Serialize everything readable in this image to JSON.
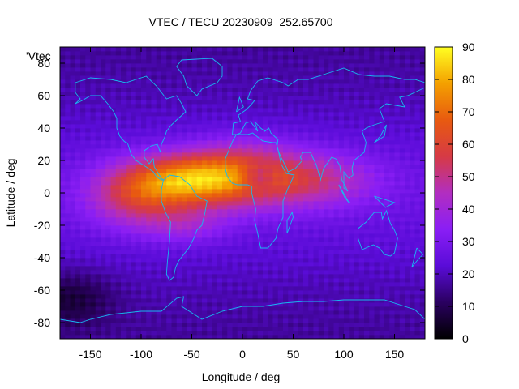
{
  "chart_data": {
    "type": "heatmap",
    "title": "VTEC / TECU 20230909_252.65700",
    "xlabel": "Longitude / deg",
    "ylabel": "Latitude / deg",
    "series_label": "'Vtec_",
    "xlim": [
      -180,
      180
    ],
    "ylim": [
      -90,
      90
    ],
    "x_ticks": [
      -150,
      -100,
      -50,
      0,
      50,
      100,
      150
    ],
    "y_ticks": [
      -80,
      -60,
      -40,
      -20,
      0,
      20,
      40,
      60,
      80
    ],
    "colorbar": {
      "range": [
        0,
        90
      ],
      "ticks": [
        0,
        10,
        20,
        30,
        40,
        50,
        60,
        70,
        80,
        90
      ],
      "palette": [
        "#000000",
        "#2a0060",
        "#5a0cd8",
        "#8a1ef5",
        "#b22ec0",
        "#d63a45",
        "#e85a10",
        "#f4a000",
        "#ffff22"
      ]
    },
    "grid": {
      "lon_step": 5,
      "lat_step": 2.5
    },
    "blobs": [
      {
        "lon": -55,
        "lat": 8,
        "slon": 40,
        "slat": 11,
        "amp": 42
      },
      {
        "lon": -105,
        "lat": -2,
        "slon": 35,
        "slat": 14,
        "amp": 26
      },
      {
        "lon": 0,
        "lat": 12,
        "slon": 40,
        "slat": 14,
        "amp": 30
      },
      {
        "lon": 70,
        "lat": 8,
        "slon": 45,
        "slat": 12,
        "amp": 22
      },
      {
        "lon": 15,
        "lat": 10,
        "slon": 12,
        "slat": 6,
        "amp": -18
      },
      {
        "lon": -55,
        "lat": -20,
        "slon": 30,
        "slat": 8,
        "amp": 12
      }
    ],
    "baseline": {
      "equator": 26,
      "pole": 16,
      "southwest_dark": -12
    },
    "coastline_color": "#18b8f0",
    "coastlines": [
      [
        [
          -165,
          68
        ],
        [
          -150,
          71
        ],
        [
          -130,
          70
        ],
        [
          -115,
          68
        ],
        [
          -95,
          72
        ],
        [
          -85,
          66
        ],
        [
          -80,
          62
        ],
        [
          -75,
          58
        ],
        [
          -65,
          60
        ],
        [
          -60,
          55
        ],
        [
          -56,
          50
        ],
        [
          -65,
          45
        ],
        [
          -70,
          42
        ],
        [
          -75,
          38
        ],
        [
          -77,
          34
        ],
        [
          -80,
          30
        ],
        [
          -81,
          25
        ],
        [
          -84,
          30
        ],
        [
          -90,
          29
        ],
        [
          -97,
          26
        ],
        [
          -97,
          22
        ],
        [
          -92,
          18
        ],
        [
          -88,
          21
        ],
        [
          -87,
          16
        ],
        [
          -83,
          12
        ],
        [
          -80,
          9
        ],
        [
          -78,
          8
        ],
        [
          -80,
          8
        ],
        [
          -85,
          10
        ],
        [
          -88,
          13
        ],
        [
          -95,
          16
        ],
        [
          -105,
          20
        ],
        [
          -110,
          24
        ],
        [
          -113,
          30
        ],
        [
          -117,
          32
        ],
        [
          -121,
          35
        ],
        [
          -124,
          40
        ],
        [
          -124,
          46
        ],
        [
          -127,
          50
        ],
        [
          -133,
          55
        ],
        [
          -140,
          60
        ],
        [
          -150,
          60
        ],
        [
          -158,
          57
        ],
        [
          -165,
          55
        ],
        [
          -160,
          58
        ],
        [
          -165,
          62
        ],
        [
          -165,
          68
        ]
      ],
      [
        [
          -78,
          8
        ],
        [
          -72,
          11
        ],
        [
          -62,
          10
        ],
        [
          -52,
          5
        ],
        [
          -45,
          -2
        ],
        [
          -35,
          -5
        ],
        [
          -37,
          -12
        ],
        [
          -40,
          -20
        ],
        [
          -45,
          -23
        ],
        [
          -48,
          -28
        ],
        [
          -53,
          -34
        ],
        [
          -58,
          -38
        ],
        [
          -63,
          -42
        ],
        [
          -66,
          -46
        ],
        [
          -68,
          -52
        ],
        [
          -72,
          -54
        ],
        [
          -75,
          -50
        ],
        [
          -74,
          -42
        ],
        [
          -72,
          -30
        ],
        [
          -71,
          -18
        ],
        [
          -76,
          -12
        ],
        [
          -80,
          -5
        ],
        [
          -80,
          2
        ],
        [
          -78,
          8
        ]
      ],
      [
        [
          -45,
          60
        ],
        [
          -55,
          66
        ],
        [
          -58,
          72
        ],
        [
          -65,
          78
        ],
        [
          -60,
          82
        ],
        [
          -30,
          83
        ],
        [
          -20,
          78
        ],
        [
          -20,
          72
        ],
        [
          -25,
          68
        ],
        [
          -40,
          64
        ],
        [
          -45,
          60
        ]
      ],
      [
        [
          -17,
          15
        ],
        [
          -17,
          21
        ],
        [
          -13,
          27
        ],
        [
          -9,
          33
        ],
        [
          -6,
          36
        ],
        [
          5,
          36
        ],
        [
          10,
          37
        ],
        [
          20,
          32
        ],
        [
          30,
          31
        ],
        [
          33,
          31
        ],
        [
          35,
          27
        ],
        [
          38,
          18
        ],
        [
          43,
          12
        ],
        [
          51,
          11
        ],
        [
          45,
          3
        ],
        [
          40,
          -5
        ],
        [
          40,
          -15
        ],
        [
          35,
          -22
        ],
        [
          33,
          -28
        ],
        [
          25,
          -34
        ],
        [
          18,
          -34
        ],
        [
          15,
          -25
        ],
        [
          12,
          -17
        ],
        [
          13,
          -10
        ],
        [
          9,
          0
        ],
        [
          9,
          4
        ],
        [
          5,
          5
        ],
        [
          -5,
          5
        ],
        [
          -10,
          6
        ],
        [
          -15,
          10
        ],
        [
          -17,
          15
        ]
      ],
      [
        [
          -10,
          36
        ],
        [
          -9,
          43
        ],
        [
          -2,
          44
        ],
        [
          -4,
          48
        ],
        [
          3,
          51
        ],
        [
          8,
          54
        ],
        [
          12,
          57
        ],
        [
          5,
          58
        ],
        [
          8,
          63
        ],
        [
          15,
          69
        ],
        [
          25,
          71
        ],
        [
          40,
          68
        ],
        [
          45,
          66
        ],
        [
          55,
          70
        ],
        [
          65,
          70
        ],
        [
          80,
          73
        ],
        [
          100,
          77
        ],
        [
          115,
          73
        ],
        [
          130,
          72
        ],
        [
          145,
          72
        ],
        [
          160,
          70
        ],
        [
          170,
          70
        ],
        [
          180,
          68
        ],
        [
          180,
          65
        ],
        [
          170,
          62
        ],
        [
          163,
          60
        ],
        [
          155,
          59
        ],
        [
          160,
          53
        ],
        [
          142,
          55
        ],
        [
          135,
          52
        ],
        [
          140,
          44
        ],
        [
          130,
          42
        ],
        [
          122,
          40
        ],
        [
          118,
          38
        ],
        [
          122,
          31
        ],
        [
          120,
          25
        ],
        [
          110,
          20
        ],
        [
          108,
          15
        ],
        [
          109,
          11
        ],
        [
          105,
          9
        ],
        [
          100,
          13
        ],
        [
          100,
          3
        ],
        [
          104,
          1
        ],
        [
          98,
          8
        ],
        [
          96,
          17
        ],
        [
          92,
          21
        ],
        [
          88,
          22
        ],
        [
          80,
          15
        ],
        [
          77,
          8
        ],
        [
          73,
          17
        ],
        [
          70,
          21
        ],
        [
          67,
          25
        ],
        [
          60,
          25
        ],
        [
          57,
          22
        ],
        [
          59,
          20
        ],
        [
          52,
          15
        ],
        [
          45,
          13
        ],
        [
          43,
          16
        ],
        [
          38,
          22
        ],
        [
          34,
          28
        ],
        [
          35,
          33
        ],
        [
          28,
          37
        ],
        [
          26,
          40
        ],
        [
          22,
          38
        ],
        [
          18,
          40
        ],
        [
          12,
          44
        ],
        [
          15,
          38
        ],
        [
          8,
          44
        ],
        [
          3,
          43
        ],
        [
          -2,
          37
        ],
        [
          -6,
          36
        ],
        [
          -10,
          36
        ]
      ],
      [
        [
          -6,
          50
        ],
        [
          -3,
          59
        ],
        [
          1,
          53
        ],
        [
          -6,
          50
        ]
      ],
      [
        [
          114,
          -22
        ],
        [
          122,
          -18
        ],
        [
          130,
          -12
        ],
        [
          137,
          -12
        ],
        [
          138,
          -16
        ],
        [
          142,
          -11
        ],
        [
          146,
          -19
        ],
        [
          150,
          -23
        ],
        [
          153,
          -28
        ],
        [
          150,
          -37
        ],
        [
          146,
          -39
        ],
        [
          140,
          -38
        ],
        [
          135,
          -34
        ],
        [
          129,
          -32
        ],
        [
          118,
          -35
        ],
        [
          114,
          -28
        ],
        [
          114,
          -22
        ]
      ],
      [
        [
          44,
          -25
        ],
        [
          50,
          -15
        ],
        [
          49,
          -12
        ],
        [
          44,
          -17
        ],
        [
          44,
          -25
        ]
      ],
      [
        [
          95,
          5
        ],
        [
          105,
          -6
        ],
        [
          101,
          -3
        ],
        [
          95,
          5
        ]
      ],
      [
        [
          130,
          -2
        ],
        [
          150,
          -6
        ],
        [
          141,
          -9
        ],
        [
          130,
          -2
        ]
      ],
      [
        [
          130,
          31
        ],
        [
          140,
          35
        ],
        [
          142,
          42
        ],
        [
          136,
          35
        ],
        [
          130,
          31
        ]
      ],
      [
        [
          172,
          -34
        ],
        [
          178,
          -38
        ],
        [
          172,
          -42
        ],
        [
          167,
          -46
        ],
        [
          172,
          -34
        ]
      ],
      [
        [
          -180,
          -78
        ],
        [
          -160,
          -80
        ],
        [
          -150,
          -78
        ],
        [
          -130,
          -75
        ],
        [
          -100,
          -73
        ],
        [
          -80,
          -73
        ],
        [
          -65,
          -65
        ],
        [
          -58,
          -64
        ],
        [
          -60,
          -70
        ],
        [
          -40,
          -78
        ],
        [
          -20,
          -73
        ],
        [
          0,
          -70
        ],
        [
          20,
          -70
        ],
        [
          40,
          -68
        ],
        [
          60,
          -67
        ],
        [
          80,
          -67
        ],
        [
          100,
          -66
        ],
        [
          120,
          -66
        ],
        [
          140,
          -66
        ],
        [
          160,
          -70
        ],
        [
          170,
          -72
        ],
        [
          180,
          -78
        ]
      ]
    ]
  }
}
